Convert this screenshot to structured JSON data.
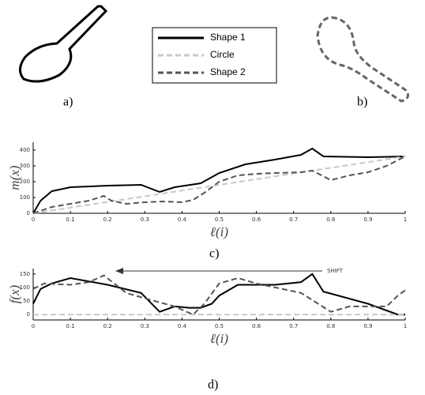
{
  "panel_labels": [
    "a)",
    "b)",
    "c)",
    "d)"
  ],
  "chart_data": [
    {
      "type": "line",
      "y_label": "m(x)",
      "x_label": "ℓ(i)",
      "xlim": [
        0,
        1
      ],
      "ylim": [
        0,
        450
      ],
      "xticks": [
        0,
        0.1,
        0.2,
        0.3,
        0.4,
        0.5,
        0.6,
        0.7,
        0.8,
        0.9,
        1
      ],
      "yticks": [
        0,
        100,
        200,
        300,
        400
      ],
      "series": [
        {
          "name": "Shape 1",
          "color": "#000000",
          "linestyle": "solid",
          "x": [
            0,
            0.02,
            0.05,
            0.1,
            0.2,
            0.29,
            0.34,
            0.38,
            0.45,
            0.5,
            0.57,
            0.65,
            0.72,
            0.75,
            0.78,
            0.9,
            1
          ],
          "values": [
            0,
            80,
            140,
            165,
            175,
            180,
            135,
            165,
            190,
            255,
            310,
            340,
            370,
            410,
            360,
            355,
            360
          ]
        },
        {
          "name": "Circle",
          "color": "#c8c8c8",
          "linestyle": "dashed",
          "x": [
            0,
            1
          ],
          "values": [
            0,
            360
          ]
        },
        {
          "name": "Shape 2",
          "color": "#555555",
          "linestyle": "dashed",
          "x": [
            0,
            0.05,
            0.1,
            0.15,
            0.19,
            0.21,
            0.25,
            0.3,
            0.35,
            0.4,
            0.43,
            0.46,
            0.5,
            0.55,
            0.6,
            0.65,
            0.72,
            0.75,
            0.8,
            0.85,
            0.9,
            0.95,
            1
          ],
          "values": [
            0,
            40,
            60,
            80,
            110,
            80,
            60,
            70,
            75,
            70,
            85,
            130,
            200,
            240,
            250,
            255,
            260,
            270,
            210,
            240,
            260,
            300,
            360
          ]
        }
      ]
    },
    {
      "type": "line",
      "y_label": "f(x)",
      "x_label": "ℓ(i)",
      "annotation": "SHIFT",
      "xlim": [
        0,
        1
      ],
      "ylim": [
        -20,
        170
      ],
      "xticks": [
        0,
        0.1,
        0.2,
        0.3,
        0.4,
        0.5,
        0.6,
        0.7,
        0.8,
        0.9,
        1
      ],
      "yticks": [
        0,
        50,
        100,
        150
      ],
      "series": [
        {
          "name": "Shape 1",
          "color": "#000000",
          "linestyle": "solid",
          "x": [
            0,
            0.02,
            0.05,
            0.1,
            0.2,
            0.29,
            0.34,
            0.38,
            0.42,
            0.45,
            0.48,
            0.5,
            0.55,
            0.65,
            0.72,
            0.75,
            0.78,
            0.9,
            0.98,
            1
          ],
          "values": [
            40,
            95,
            115,
            135,
            110,
            80,
            10,
            30,
            25,
            25,
            40,
            70,
            110,
            110,
            120,
            150,
            85,
            40,
            0,
            0
          ]
        },
        {
          "name": "Circle",
          "color": "#c8c8c8",
          "linestyle": "dashed",
          "x": [
            0,
            1
          ],
          "values": [
            0,
            0
          ]
        },
        {
          "name": "Shape 2",
          "color": "#555555",
          "linestyle": "dashed",
          "x": [
            0,
            0.03,
            0.1,
            0.15,
            0.19,
            0.25,
            0.3,
            0.38,
            0.43,
            0.46,
            0.5,
            0.55,
            0.6,
            0.72,
            0.8,
            0.85,
            0.95,
            0.98,
            1
          ],
          "values": [
            95,
            115,
            110,
            120,
            145,
            80,
            60,
            30,
            0,
            40,
            115,
            135,
            115,
            80,
            10,
            30,
            30,
            70,
            90
          ]
        }
      ]
    }
  ]
}
